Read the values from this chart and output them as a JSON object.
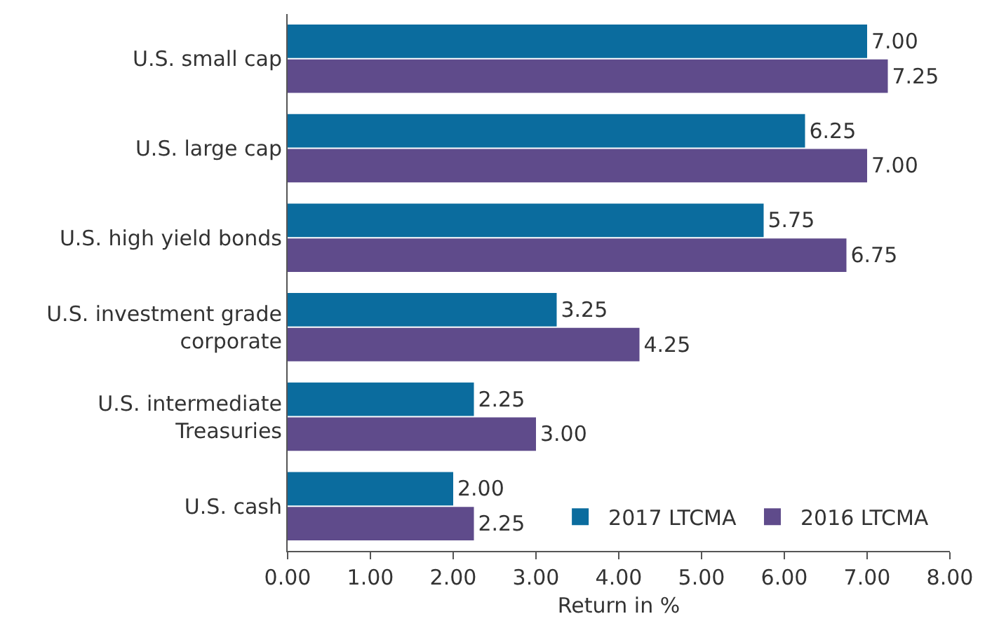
{
  "chart_data": {
    "type": "bar",
    "orientation": "horizontal",
    "xlabel": "Return in %",
    "categories": [
      "U.S. small cap",
      "U.S. large cap",
      "U.S. high yield bonds",
      "U.S. investment grade corporate",
      "U.S. intermediate Treasuries",
      "U.S. cash"
    ],
    "series": [
      {
        "name": "2017 LTCMA",
        "color": "#0b6c9e",
        "values": [
          7.0,
          6.25,
          5.75,
          3.25,
          2.25,
          2.0
        ],
        "value_labels": [
          "7.00",
          "6.25",
          "5.75",
          "3.25",
          "2.25",
          "2.00"
        ]
      },
      {
        "name": "2016 LTCMA",
        "color": "#5f4b8b",
        "values": [
          7.25,
          7.0,
          6.75,
          4.25,
          3.0,
          2.25
        ],
        "value_labels": [
          "7.25",
          "7.00",
          "6.75",
          "4.25",
          "3.00",
          "2.25"
        ]
      }
    ],
    "xlim": [
      0,
      8
    ],
    "xticks": [
      {
        "value": 0,
        "label": "0.00"
      },
      {
        "value": 1,
        "label": "1.00"
      },
      {
        "value": 2,
        "label": "2.00"
      },
      {
        "value": 3,
        "label": "3.00"
      },
      {
        "value": 4,
        "label": "4.00"
      },
      {
        "value": 5,
        "label": "5.00"
      },
      {
        "value": 6,
        "label": "6.00"
      },
      {
        "value": 7,
        "label": "7.00"
      },
      {
        "value": 8,
        "label": "8.00"
      }
    ],
    "grid": false,
    "legend": "bottom right"
  }
}
